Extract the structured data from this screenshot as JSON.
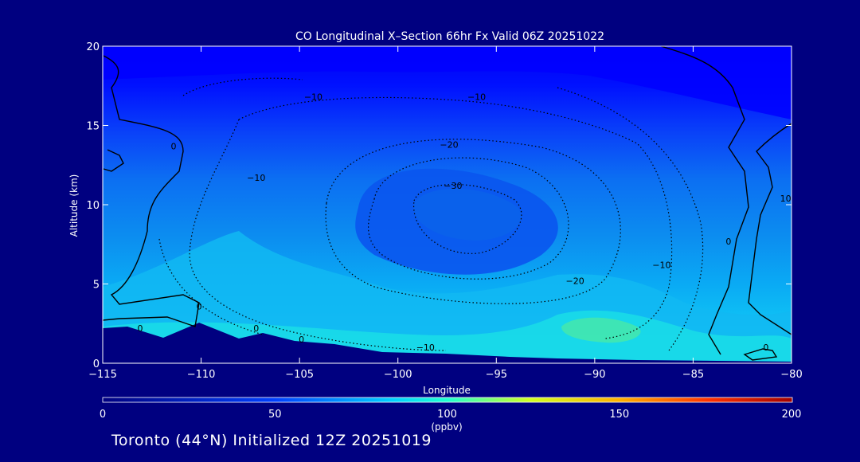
{
  "chart_data": {
    "type": "heatmap",
    "title": "CO Longitudinal X–Section 66hr  Fx Valid 06Z 20251022",
    "xlabel": "Longitude",
    "ylabel": "Altitude (km)",
    "xlim": [
      -115,
      -80
    ],
    "ylim": [
      0,
      20
    ],
    "xticks": [
      -115,
      -110,
      -105,
      -100,
      -95,
      -90,
      -85,
      -80
    ],
    "xtick_labels": [
      "−115",
      "−110",
      "−105",
      "−100",
      "−95",
      "−90",
      "−85",
      "−80"
    ],
    "yticks": [
      0,
      5,
      10,
      15,
      20
    ],
    "ytick_labels": [
      "0",
      "5",
      "10",
      "15",
      "20"
    ],
    "colorbar": {
      "label": "(ppbv)",
      "range": [
        0,
        200
      ],
      "ticks": [
        0,
        50,
        100,
        150,
        200
      ],
      "tick_labels": [
        "0",
        "50",
        "100",
        "150",
        "200"
      ]
    },
    "contour_labels": [
      {
        "text": "−10",
        "x": -104.3,
        "y": 16.6
      },
      {
        "text": "−10",
        "x": -96.0,
        "y": 16.6
      },
      {
        "text": "−20",
        "x": -97.4,
        "y": 13.6
      },
      {
        "text": "−30",
        "x": -97.2,
        "y": 11.0
      },
      {
        "text": "−10",
        "x": -107.2,
        "y": 11.5
      },
      {
        "text": "0",
        "x": -111.4,
        "y": 13.5
      },
      {
        "text": "0",
        "x": -110.1,
        "y": 3.4
      },
      {
        "text": "0",
        "x": -113.1,
        "y": 2.0
      },
      {
        "text": "0",
        "x": -107.2,
        "y": 2.0
      },
      {
        "text": "0",
        "x": -104.9,
        "y": 1.3
      },
      {
        "text": "−10",
        "x": -98.6,
        "y": 0.8
      },
      {
        "text": "−20",
        "x": -91.0,
        "y": 5.0
      },
      {
        "text": "−10",
        "x": -86.6,
        "y": 6.0
      },
      {
        "text": "0",
        "x": -83.2,
        "y": 7.5
      },
      {
        "text": "10",
        "x": -80.3,
        "y": 10.2
      },
      {
        "text": "0",
        "x": -81.3,
        "y": 0.8
      }
    ]
  },
  "footer": "Toronto (44°N) Initialized 12Z 20251019",
  "colors": {
    "background": "#000080",
    "high": "#0000ff",
    "mid": "#0a4ff0",
    "low": "#0fb7f3",
    "surface": "#1be2e6",
    "terrain": "#000080",
    "plume": "#48e8a8"
  }
}
